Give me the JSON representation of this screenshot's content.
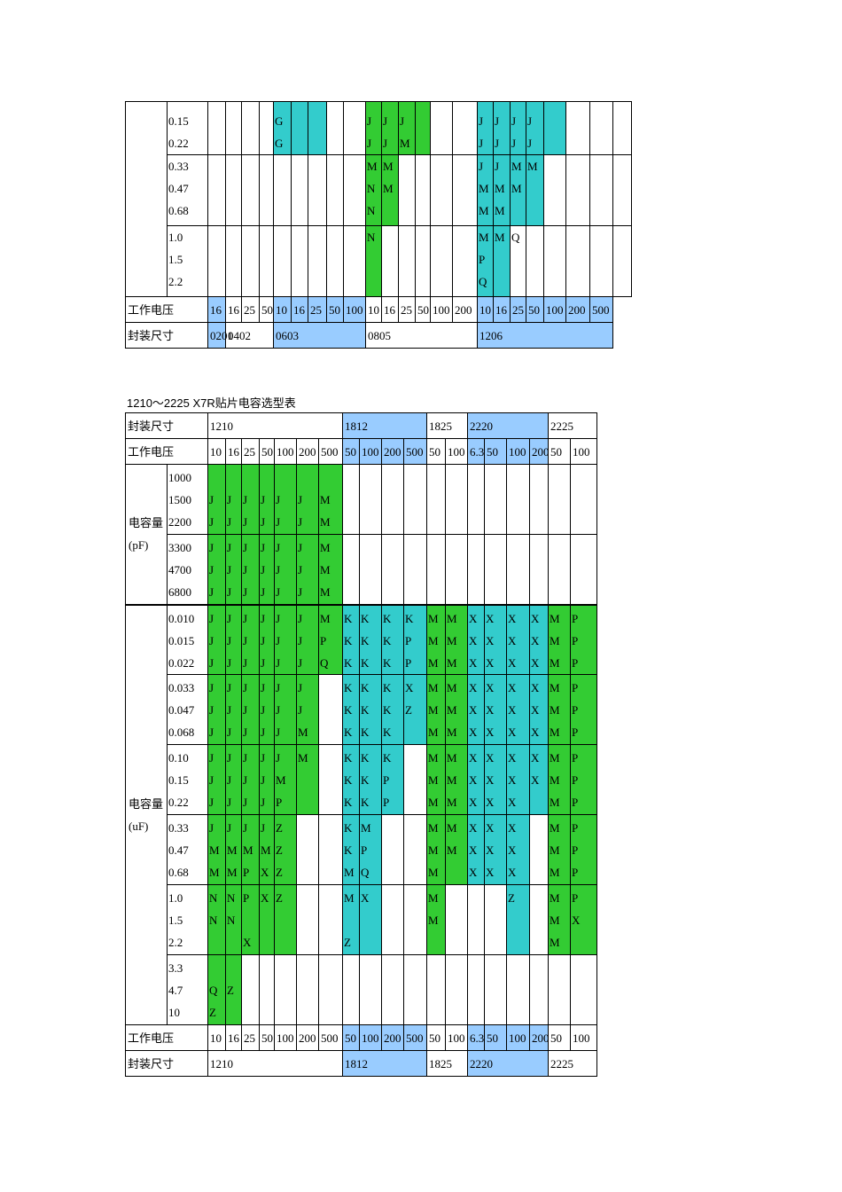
{
  "top": {
    "cols": [
      [
        93,
        "0.15"
      ],
      [
        20,
        "0.16"
      ],
      [
        18,
        "0.16"
      ],
      [
        20,
        "0.16"
      ],
      [
        16,
        "0.16"
      ],
      [
        20,
        "0.16"
      ],
      [
        19,
        "0.16"
      ],
      [
        21,
        "0.16"
      ],
      [
        19,
        "0.16"
      ],
      [
        25,
        "0.16"
      ],
      [
        18,
        "0.16"
      ],
      [
        19,
        "0.16"
      ],
      [
        19,
        "0.16"
      ],
      [
        17,
        "0.16"
      ],
      [
        25,
        "0.16"
      ],
      [
        28,
        "0.16"
      ],
      [
        18,
        "0.16"
      ],
      [
        19,
        "0.16"
      ],
      [
        18,
        "0.16"
      ],
      [
        20,
        "0.16"
      ],
      [
        25,
        "0.16"
      ],
      [
        27,
        "0.16"
      ],
      [
        26,
        "0.16"
      ]
    ],
    "groups": [
      {
        "labels": [
          "0.15",
          "0.22"
        ],
        "h": 56,
        "cells": [
          [],
          [],
          [],
          [],
          [
            "G",
            "G"
          ],
          [],
          [],
          [],
          [],
          [
            "J",
            "J"
          ],
          [
            "J",
            "J"
          ],
          [
            "J",
            "M"
          ],
          [],
          [],
          [],
          [
            "J",
            "J"
          ],
          [
            "J",
            "J"
          ],
          [
            "J",
            "J"
          ],
          [
            "J",
            "J"
          ],
          [],
          [],
          [],
          []
        ],
        "bg": [
          "",
          "",
          "",
          "",
          "t",
          "t",
          "t",
          "",
          "",
          "g",
          "g",
          "g",
          "g",
          "",
          "",
          "t",
          "t",
          "t",
          "t",
          "t",
          "",
          "",
          ""
        ]
      },
      {
        "labels": [
          "0.33",
          "0.47",
          "0.68"
        ],
        "h": 80,
        "cells": [
          [],
          [],
          [],
          [],
          [],
          [],
          [],
          [],
          [],
          [
            "M",
            "N",
            "N"
          ],
          [
            "M",
            "M"
          ],
          [],
          [],
          [],
          [],
          [
            "J",
            "M",
            "M"
          ],
          [
            "J",
            "M",
            "M"
          ],
          [
            "M",
            "M"
          ],
          [
            "M"
          ],
          [],
          [],
          [],
          []
        ],
        "bg": [
          "",
          "",
          "",
          "",
          "",
          "",
          "",
          "",
          "",
          "g",
          "g",
          "",
          "",
          "",
          "",
          "t",
          "t",
          "t",
          "t",
          "",
          "",
          "",
          ""
        ]
      },
      {
        "labels": [
          "1.0",
          "1.5",
          "2.2"
        ],
        "h": 80,
        "cells": [
          [],
          [],
          [],
          [],
          [],
          [],
          [],
          [],
          [],
          [
            "N"
          ],
          [],
          [],
          [],
          [],
          [],
          [
            "M",
            "P",
            "Q"
          ],
          [
            "M"
          ],
          [
            "Q"
          ],
          [],
          [],
          [],
          [],
          []
        ],
        "bg": [
          "",
          "",
          "",
          "",
          "",
          "",
          "",
          "",
          "",
          "g",
          "",
          "",
          "",
          "",
          "",
          "t",
          "t",
          "",
          "",
          "",
          "",
          "",
          ""
        ]
      }
    ],
    "voltage_label": "工作电压",
    "voltages": [
      "16",
      "",
      "16",
      "25",
      "50",
      "10",
      "16",
      "25",
      "50",
      "100",
      "10",
      "16",
      "25",
      "50",
      "100",
      "200",
      "10",
      "16",
      "25",
      "50",
      "100",
      "200",
      "500"
    ],
    "size_label": "封装尺寸",
    "sizes": [
      {
        "text": "0201",
        "span": 1,
        "vh": true
      },
      {
        "text": "0402",
        "span": 3,
        "vh": false
      },
      {
        "text": "0603",
        "span": 5,
        "vh": true
      },
      {
        "text": "0805",
        "span": 6,
        "vh": false
      },
      {
        "text": "1206",
        "span": 7,
        "vh": true
      }
    ]
  },
  "caption": {
    "a": "1210～2225 X7R",
    "b": "贴片电容选型表"
  },
  "bottom": {
    "size_label": "封装尺寸",
    "voltage_label": "工作电压",
    "sizes": [
      {
        "text": "1210",
        "span": 7,
        "vh": false
      },
      {
        "text": "1812",
        "span": 4,
        "vh": true
      },
      {
        "text": "1825",
        "span": 2,
        "vh": false
      },
      {
        "text": "2220",
        "span": 4,
        "vh": true
      },
      {
        "text": "2225",
        "span": 2,
        "vh": false
      }
    ],
    "voltages": [
      "10",
      "16",
      "25",
      "50",
      "100",
      "200",
      "500",
      "50",
      "100",
      "200",
      "500",
      "50",
      "100",
      "6.3",
      "50",
      "100",
      "200",
      "50",
      "100"
    ],
    "voltage_bg": [
      "",
      "",
      "",
      "",
      "",
      "",
      "",
      "vh",
      "vh",
      "vh",
      "vh",
      "",
      "",
      "vh",
      "vh",
      "vh",
      "vh",
      "",
      ""
    ],
    "pf_label": [
      "电容量",
      "(pF)"
    ],
    "uf_label": [
      "电容量",
      "(uF)"
    ],
    "groups": [
      {
        "labels": [
          "1000",
          "1500",
          "2200"
        ],
        "cells": [
          [
            " ",
            "J",
            "J"
          ],
          [
            " ",
            "J",
            "J"
          ],
          [
            " ",
            "J",
            "J"
          ],
          [
            " ",
            "J",
            "J"
          ],
          [
            " ",
            "J",
            "J"
          ],
          [
            " ",
            "J",
            "J"
          ],
          [
            " ",
            "M",
            "M"
          ],
          [],
          [],
          [],
          [],
          [],
          [],
          [],
          [],
          [],
          [],
          [],
          []
        ],
        "bg": [
          "g",
          "g",
          "g",
          "g",
          "g",
          "g",
          "g",
          "",
          "",
          "",
          "",
          "",
          "",
          "",
          "",
          "",
          "",
          "",
          ""
        ]
      },
      {
        "labels": [
          "3300",
          "4700",
          "6800"
        ],
        "cells": [
          [
            "J",
            "J",
            "J"
          ],
          [
            "J",
            "J",
            "J"
          ],
          [
            "J",
            "J",
            "J"
          ],
          [
            "J",
            "J",
            "J"
          ],
          [
            "J",
            "J",
            "J"
          ],
          [
            "J",
            "J",
            "J"
          ],
          [
            "M",
            "M",
            "M"
          ],
          [],
          [],
          [],
          [],
          [],
          [],
          [],
          [],
          [],
          [],
          [],
          []
        ],
        "bg": [
          "g",
          "g",
          "g",
          "g",
          "g",
          "g",
          "g",
          "",
          "",
          "",
          "",
          "",
          "",
          "",
          "",
          "",
          "",
          "",
          ""
        ]
      },
      {
        "labels": [
          "0.010",
          "0.015",
          "0.022"
        ],
        "cells": [
          [
            "J",
            "J",
            "J"
          ],
          [
            "J",
            "J",
            "J"
          ],
          [
            "J",
            "J",
            "J"
          ],
          [
            "J",
            "J",
            "J"
          ],
          [
            "J",
            "J",
            "J"
          ],
          [
            "J",
            "J",
            "J"
          ],
          [
            "M",
            "P",
            "Q"
          ],
          [
            "K",
            "K",
            "K"
          ],
          [
            "K",
            "K",
            "K"
          ],
          [
            "K",
            "K",
            "K"
          ],
          [
            "K",
            "P",
            "P"
          ],
          [
            "M",
            "M",
            "M"
          ],
          [
            "M",
            "M",
            "M"
          ],
          [
            "X",
            "X",
            "X"
          ],
          [
            "X",
            "X",
            "X"
          ],
          [
            "X",
            "X",
            "X"
          ],
          [
            "X",
            "X",
            "X"
          ],
          [
            "M",
            "M",
            "M"
          ],
          [
            "P",
            "P",
            "P"
          ]
        ],
        "bg": [
          "g",
          "g",
          "g",
          "g",
          "g",
          "g",
          "g",
          "t",
          "t",
          "t",
          "t",
          "g",
          "g",
          "t",
          "t",
          "t",
          "t",
          "g",
          "g"
        ]
      },
      {
        "labels": [
          "0.033",
          "0.047",
          "0.068"
        ],
        "cells": [
          [
            "J",
            "J",
            "J"
          ],
          [
            "J",
            "J",
            "J"
          ],
          [
            "J",
            "J",
            "J"
          ],
          [
            "J",
            "J",
            "J"
          ],
          [
            "J",
            "J",
            "J"
          ],
          [
            "J",
            "J",
            "M"
          ],
          [],
          [
            "K",
            "K",
            "K"
          ],
          [
            "K",
            "K",
            "K"
          ],
          [
            "K",
            "K",
            "K"
          ],
          [
            "X",
            "Z"
          ],
          [
            "M",
            "M",
            "M"
          ],
          [
            "M",
            "M",
            "M"
          ],
          [
            "X",
            "X",
            "X"
          ],
          [
            "X",
            "X",
            "X"
          ],
          [
            "X",
            "X",
            "X"
          ],
          [
            "X",
            "X",
            "X"
          ],
          [
            "M",
            "M",
            "M"
          ],
          [
            "P",
            "P",
            "P"
          ]
        ],
        "bg": [
          "g",
          "g",
          "g",
          "g",
          "g",
          "g",
          "",
          "t",
          "t",
          "t",
          "t",
          "g",
          "g",
          "t",
          "t",
          "t",
          "t",
          "g",
          "g"
        ]
      },
      {
        "labels": [
          "0.10",
          "0.15",
          "0.22"
        ],
        "cells": [
          [
            "J",
            "J",
            "J"
          ],
          [
            "J",
            "J",
            "J"
          ],
          [
            "J",
            "J",
            "J"
          ],
          [
            "J",
            "J",
            "J"
          ],
          [
            "J",
            "M",
            "P"
          ],
          [
            "M"
          ],
          [],
          [
            "K",
            "K",
            "K"
          ],
          [
            "K",
            "K",
            "K"
          ],
          [
            "K",
            "P",
            "P"
          ],
          [],
          [
            "M",
            "M",
            "M"
          ],
          [
            "M",
            "M",
            "M"
          ],
          [
            "X",
            "X",
            "X"
          ],
          [
            "X",
            "X",
            "X"
          ],
          [
            "X",
            "X",
            "X"
          ],
          [
            "X",
            "X"
          ],
          [
            "M",
            "M",
            "M"
          ],
          [
            "P",
            "P",
            "P"
          ]
        ],
        "bg": [
          "g",
          "g",
          "g",
          "g",
          "g",
          "g",
          "",
          "t",
          "t",
          "t",
          "",
          "g",
          "g",
          "t",
          "t",
          "t",
          "t",
          "g",
          "g"
        ]
      },
      {
        "labels": [
          "0.33",
          "0.47",
          "0.68"
        ],
        "cells": [
          [
            "J",
            "M",
            "M"
          ],
          [
            "J",
            "M",
            "M"
          ],
          [
            "J",
            "M",
            "P"
          ],
          [
            "J",
            "M",
            "X"
          ],
          [
            "Z",
            "Z",
            "Z"
          ],
          [],
          [],
          [
            "K",
            "K",
            "M"
          ],
          [
            "M",
            "P",
            "Q"
          ],
          [],
          [],
          [
            "M",
            "M",
            "M"
          ],
          [
            "M",
            "M"
          ],
          [
            "X",
            "X",
            "X"
          ],
          [
            "X",
            "X",
            "X"
          ],
          [
            "X",
            "X",
            "X"
          ],
          [],
          [
            "M",
            "M",
            "M"
          ],
          [
            "P",
            "P",
            "P"
          ]
        ],
        "bg": [
          "g",
          "g",
          "g",
          "g",
          "g",
          "",
          "",
          "t",
          "t",
          "",
          "",
          "g",
          "g",
          "t",
          "t",
          "t",
          "",
          "g",
          "g"
        ]
      },
      {
        "labels": [
          "1.0",
          "1.5",
          "2.2"
        ],
        "cells": [
          [
            "N",
            "N"
          ],
          [
            "N",
            "N"
          ],
          [
            "P",
            " ",
            "X"
          ],
          [
            "X"
          ],
          [
            "Z"
          ],
          [],
          [],
          [
            "M",
            " ",
            "Z"
          ],
          [
            "X"
          ],
          [],
          [],
          [
            "M",
            "M"
          ],
          [],
          [],
          [],
          [
            "Z"
          ],
          [],
          [
            "M",
            "M",
            "M"
          ],
          [
            "P",
            "X"
          ]
        ],
        "bg": [
          "g",
          "g",
          "g",
          "g",
          "g",
          "",
          "",
          "t",
          "t",
          "",
          "",
          "g",
          "",
          "",
          "",
          "t",
          "",
          "g",
          "g"
        ]
      },
      {
        "labels": [
          "3.3",
          "4.7",
          "10"
        ],
        "cells": [
          [
            " ",
            "Q",
            "Z"
          ],
          [
            " ",
            "Z"
          ],
          [],
          [],
          [],
          [],
          [],
          [],
          [],
          [],
          [],
          [],
          [],
          [],
          [],
          [],
          [],
          [],
          []
        ],
        "bg": [
          "g",
          "g",
          "",
          "",
          "",
          "",
          "",
          "",
          "",
          "",
          "",
          "",
          "",
          "",
          "",
          "",
          "",
          "",
          ""
        ]
      }
    ]
  }
}
